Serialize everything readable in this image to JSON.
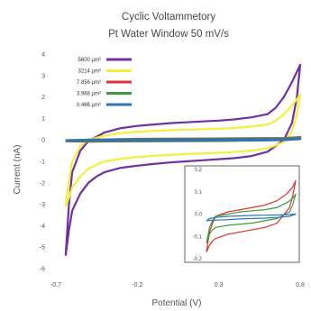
{
  "chart_data": {
    "type": "line",
    "title": "Cyclic Voltammetory",
    "subtitle": "Pt Water Window 50 mV/s",
    "xlabel": "Potential (V)",
    "ylabel": "Current (nA)",
    "xlim": [
      -0.7,
      0.8
    ],
    "ylim": [
      -6,
      4
    ],
    "x_ticks": [
      "-0.7",
      "-0.2",
      "0.3",
      "0.8"
    ],
    "y_ticks": [
      "4",
      "3",
      "2",
      "1",
      "0",
      "-1",
      "-2",
      "-3",
      "-4",
      "-5",
      "-6"
    ],
    "grid": false,
    "legend_position": "top-left",
    "series": [
      {
        "name": "5600 µm²",
        "color": "#7030a0",
        "forward": {
          "x": [
            -0.64,
            -0.62,
            -0.6,
            -0.55,
            -0.5,
            -0.4,
            -0.3,
            -0.2,
            -0.1,
            0.0,
            0.1,
            0.2,
            0.3,
            0.4,
            0.5,
            0.6,
            0.65,
            0.7,
            0.75,
            0.8
          ],
          "y": [
            -5.4,
            -3.0,
            -1.5,
            -0.5,
            -0.05,
            0.35,
            0.55,
            0.65,
            0.72,
            0.78,
            0.82,
            0.86,
            0.9,
            0.96,
            1.05,
            1.2,
            1.5,
            2.0,
            2.7,
            3.5
          ]
        },
        "reverse": {
          "x": [
            0.8,
            0.78,
            0.75,
            0.7,
            0.6,
            0.5,
            0.4,
            0.3,
            0.2,
            0.1,
            0.0,
            -0.1,
            -0.2,
            -0.3,
            -0.4,
            -0.45,
            -0.5,
            -0.55,
            -0.6,
            -0.62,
            -0.64
          ],
          "y": [
            3.5,
            2.0,
            0.8,
            0.0,
            -0.55,
            -0.75,
            -0.85,
            -0.9,
            -0.95,
            -1.0,
            -1.05,
            -1.12,
            -1.2,
            -1.3,
            -1.5,
            -1.7,
            -2.0,
            -2.5,
            -3.3,
            -4.2,
            -5.4
          ]
        }
      },
      {
        "name": "3214 µm²",
        "color": "#f2f03a",
        "forward": {
          "x": [
            -0.64,
            -0.62,
            -0.6,
            -0.55,
            -0.5,
            -0.4,
            -0.3,
            -0.2,
            -0.1,
            0.0,
            0.1,
            0.2,
            0.3,
            0.4,
            0.5,
            0.6,
            0.65,
            0.7,
            0.75,
            0.8
          ],
          "y": [
            -3.1,
            -1.9,
            -1.0,
            -0.3,
            0.0,
            0.2,
            0.32,
            0.38,
            0.42,
            0.45,
            0.48,
            0.5,
            0.52,
            0.56,
            0.62,
            0.72,
            0.9,
            1.2,
            1.6,
            2.1
          ]
        },
        "reverse": {
          "x": [
            0.8,
            0.78,
            0.75,
            0.7,
            0.6,
            0.5,
            0.4,
            0.3,
            0.2,
            0.1,
            0.0,
            -0.1,
            -0.2,
            -0.3,
            -0.4,
            -0.45,
            -0.5,
            -0.55,
            -0.6,
            -0.62,
            -0.64
          ],
          "y": [
            2.1,
            1.2,
            0.4,
            -0.1,
            -0.4,
            -0.5,
            -0.56,
            -0.6,
            -0.63,
            -0.66,
            -0.7,
            -0.74,
            -0.8,
            -0.88,
            -1.0,
            -1.15,
            -1.35,
            -1.7,
            -2.2,
            -2.7,
            -3.1
          ]
        }
      },
      {
        "name": "7.856 µm²",
        "color": "#e03030",
        "forward": {
          "x": [
            -0.64,
            -0.5,
            -0.2,
            0.3,
            0.7,
            0.8
          ],
          "y": [
            -0.06,
            0.0,
            0.04,
            0.06,
            0.08,
            0.12
          ]
        },
        "reverse": {
          "x": [
            0.8,
            0.7,
            0.3,
            -0.2,
            -0.5,
            -0.64
          ],
          "y": [
            0.12,
            0.0,
            -0.04,
            -0.06,
            -0.07,
            -0.06
          ]
        }
      },
      {
        "name": "3.968 µm²",
        "color": "#3c9a3c",
        "forward": {
          "x": [
            -0.64,
            -0.5,
            -0.2,
            0.3,
            0.7,
            0.8
          ],
          "y": [
            -0.04,
            0.0,
            0.03,
            0.04,
            0.06,
            0.08
          ]
        },
        "reverse": {
          "x": [
            0.8,
            0.7,
            0.3,
            -0.2,
            -0.5,
            -0.64
          ],
          "y": [
            0.08,
            0.0,
            -0.03,
            -0.04,
            -0.05,
            -0.04
          ]
        }
      },
      {
        "name": "0.466 µm²",
        "color": "#2e75b6",
        "forward": {
          "x": [
            -0.64,
            -0.5,
            -0.2,
            0.3,
            0.7,
            0.8
          ],
          "y": [
            -0.02,
            0.0,
            0.01,
            0.02,
            0.03,
            0.04
          ]
        },
        "reverse": {
          "x": [
            0.8,
            0.7,
            0.3,
            -0.2,
            -0.5,
            -0.64
          ],
          "y": [
            0.04,
            0.0,
            -0.01,
            -0.02,
            -0.02,
            -0.02
          ]
        }
      }
    ],
    "inset": {
      "xlim": [
        -0.65,
        0.8
      ],
      "ylim": [
        -0.2,
        0.2
      ],
      "y_ticks": [
        "0.2",
        "0.1",
        "0.0",
        "-0.1",
        "-0.2"
      ],
      "series": [
        {
          "name": "7.856 µm²",
          "color": "#e03030",
          "forward": {
            "x": [
              -0.65,
              -0.6,
              -0.55,
              -0.5,
              -0.3,
              -0.1,
              0.1,
              0.3,
              0.5,
              0.65,
              0.75,
              0.8
            ],
            "y": [
              -0.17,
              -0.08,
              -0.04,
              -0.01,
              0.01,
              0.02,
              0.03,
              0.04,
              0.06,
              0.09,
              0.12,
              0.15
            ]
          },
          "reverse": {
            "x": [
              0.8,
              0.75,
              0.7,
              0.5,
              0.3,
              0.1,
              -0.1,
              -0.3,
              -0.5,
              -0.55,
              -0.6,
              -0.65
            ],
            "y": [
              0.15,
              0.08,
              0.03,
              -0.04,
              -0.06,
              -0.07,
              -0.08,
              -0.09,
              -0.11,
              -0.12,
              -0.14,
              -0.17
            ]
          }
        },
        {
          "name": "3.968 µm²",
          "color": "#3c9a3c",
          "forward": {
            "x": [
              -0.65,
              -0.6,
              -0.55,
              -0.5,
              -0.3,
              -0.1,
              0.1,
              0.3,
              0.5,
              0.65,
              0.75,
              0.8
            ],
            "y": [
              -0.13,
              -0.06,
              -0.03,
              -0.01,
              0.0,
              0.01,
              0.015,
              0.02,
              0.03,
              0.05,
              0.07,
              0.09
            ]
          },
          "reverse": {
            "x": [
              0.8,
              0.75,
              0.7,
              0.5,
              0.3,
              0.1,
              -0.1,
              -0.3,
              -0.5,
              -0.55,
              -0.6,
              -0.65
            ],
            "y": [
              0.09,
              0.04,
              0.01,
              -0.02,
              -0.03,
              -0.04,
              -0.045,
              -0.05,
              -0.06,
              -0.07,
              -0.09,
              -0.13
            ]
          }
        },
        {
          "name": "0.466 µm²",
          "color": "#2e75b6",
          "forward": {
            "x": [
              -0.65,
              -0.6,
              -0.5,
              -0.3,
              -0.1,
              0.1,
              0.3,
              0.5,
              0.7,
              0.8
            ],
            "y": [
              -0.03,
              -0.02,
              -0.015,
              -0.01,
              -0.008,
              -0.006,
              -0.005,
              -0.004,
              -0.002,
              0.0
            ]
          },
          "reverse": {
            "x": [
              0.8,
              0.7,
              0.5,
              0.3,
              0.1,
              -0.1,
              -0.3,
              -0.5,
              -0.6,
              -0.65
            ],
            "y": [
              0.0,
              -0.01,
              -0.015,
              -0.018,
              -0.02,
              -0.022,
              -0.025,
              -0.027,
              -0.028,
              -0.03
            ]
          }
        }
      ]
    }
  }
}
